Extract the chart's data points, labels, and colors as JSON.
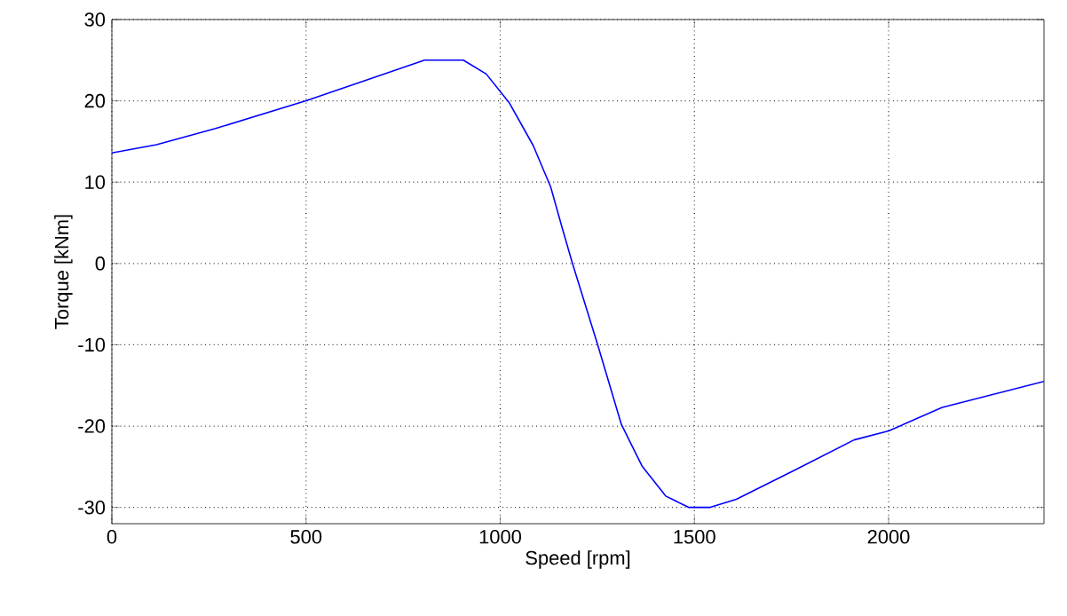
{
  "chart_data": {
    "type": "line",
    "xlabel": "Speed [rpm]",
    "ylabel": "Torque [kNm]",
    "xlim": [
      0,
      2400
    ],
    "ylim": [
      -32,
      30
    ],
    "xticks": [
      0,
      500,
      1000,
      1500,
      2000
    ],
    "yticks": [
      -30,
      -20,
      -10,
      0,
      10,
      20,
      30
    ],
    "grid": true,
    "series": [
      {
        "color": "#0000ff",
        "x": [
          0,
          115,
          267,
          500,
          652,
          805,
          905,
          964,
          1024,
          1085,
          1130,
          1160,
          1186,
          1251,
          1312,
          1365,
          1426,
          1486,
          1539,
          1608,
          1759,
          1911,
          2000,
          2138,
          2400
        ],
        "values": [
          13.6,
          14.6,
          16.6,
          20,
          22.5,
          25,
          25,
          23.3,
          19.7,
          14.5,
          9.4,
          4.3,
          0,
          -10,
          -19.8,
          -24.9,
          -28.6,
          -30,
          -30,
          -29,
          -25.4,
          -21.7,
          -20.6,
          -17.7,
          -14.5
        ]
      }
    ]
  }
}
